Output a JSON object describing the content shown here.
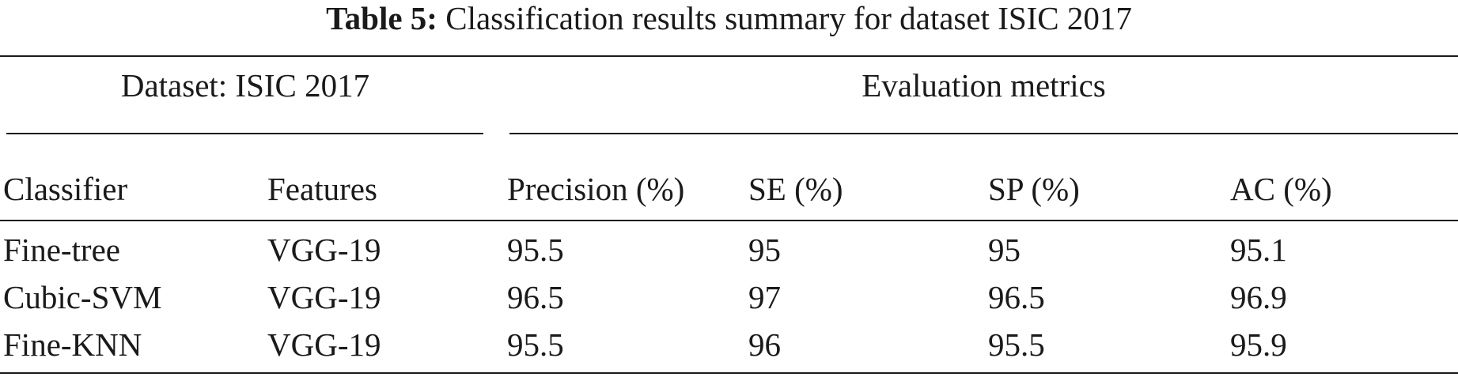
{
  "caption": {
    "label": "Table 5:",
    "text": "Classification results summary for dataset ISIC 2017"
  },
  "table": {
    "group_headers": {
      "left": "Dataset: ISIC 2017",
      "right": "Evaluation metrics"
    },
    "columns": [
      "Classifier",
      "Features",
      "Precision (%)",
      "SE (%)",
      "SP (%)",
      "AC (%)"
    ],
    "rows": [
      [
        "Fine-tree",
        "VGG-19",
        "95.5",
        "95",
        "95",
        "95.1"
      ],
      [
        "Cubic-SVM",
        "VGG-19",
        "96.5",
        "97",
        "96.5",
        "96.9"
      ],
      [
        "Fine-KNN",
        "VGG-19",
        "95.5",
        "96",
        "95.5",
        "95.9"
      ]
    ]
  }
}
